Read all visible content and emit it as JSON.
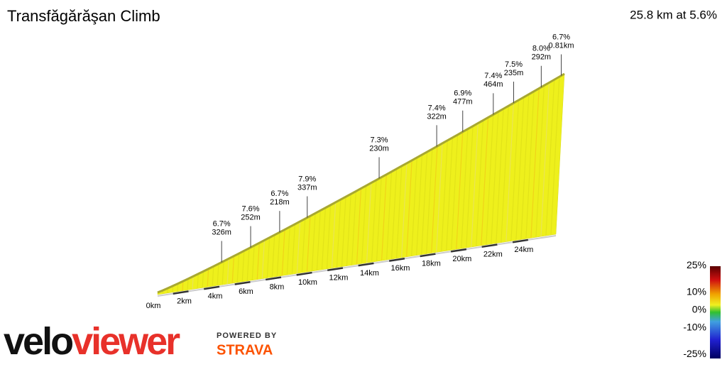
{
  "chart_data": {
    "type": "profile",
    "title": "Transfăgărăşan Climb",
    "subtitle": "25.8 km at 5.6%",
    "xlim": [
      0,
      25.8
    ],
    "xticks": [
      {
        "value": 0,
        "label": "0km"
      },
      {
        "value": 2,
        "label": "2km"
      },
      {
        "value": 4,
        "label": "4km"
      },
      {
        "value": 6,
        "label": "6km"
      },
      {
        "value": 8,
        "label": "8km"
      },
      {
        "value": 10,
        "label": "10km"
      },
      {
        "value": 12,
        "label": "12km"
      },
      {
        "value": 14,
        "label": "14km"
      },
      {
        "value": 16,
        "label": "16km"
      },
      {
        "value": 18,
        "label": "18km"
      },
      {
        "value": 20,
        "label": "20km"
      },
      {
        "value": 22,
        "label": "22km"
      },
      {
        "value": 24,
        "label": "24km"
      }
    ],
    "annotations": [
      {
        "x": 4.06,
        "grade": "6.7%",
        "length": "326m"
      },
      {
        "x": 5.9,
        "grade": "7.6%",
        "length": "252m"
      },
      {
        "x": 7.74,
        "grade": "6.7%",
        "length": "218m"
      },
      {
        "x": 9.49,
        "grade": "7.9%",
        "length": "337m"
      },
      {
        "x": 14.05,
        "grade": "7.3%",
        "length": "230m"
      },
      {
        "x": 17.7,
        "grade": "7.4%",
        "length": "322m"
      },
      {
        "x": 19.35,
        "grade": "6.9%",
        "length": "477m"
      },
      {
        "x": 21.29,
        "grade": "7.4%",
        "length": "464m"
      },
      {
        "x": 22.58,
        "grade": "7.5%",
        "length": "235m"
      },
      {
        "x": 24.33,
        "grade": "8.0%",
        "length": "292m"
      },
      {
        "x": 25.6,
        "grade": "6.7%",
        "length": "0.81km"
      }
    ],
    "colorbar": {
      "lim": [
        -25,
        25
      ],
      "ticks": [
        {
          "value": 25,
          "label": "25%"
        },
        {
          "value": 10,
          "label": "10%"
        },
        {
          "value": 0,
          "label": "0%"
        },
        {
          "value": -10,
          "label": "-10%"
        },
        {
          "value": -25,
          "label": "-25%"
        }
      ]
    }
  },
  "logo": {
    "part1": "velo",
    "part2": "viewer",
    "powered": "POWERED BY",
    "brand": "STRAVA"
  }
}
